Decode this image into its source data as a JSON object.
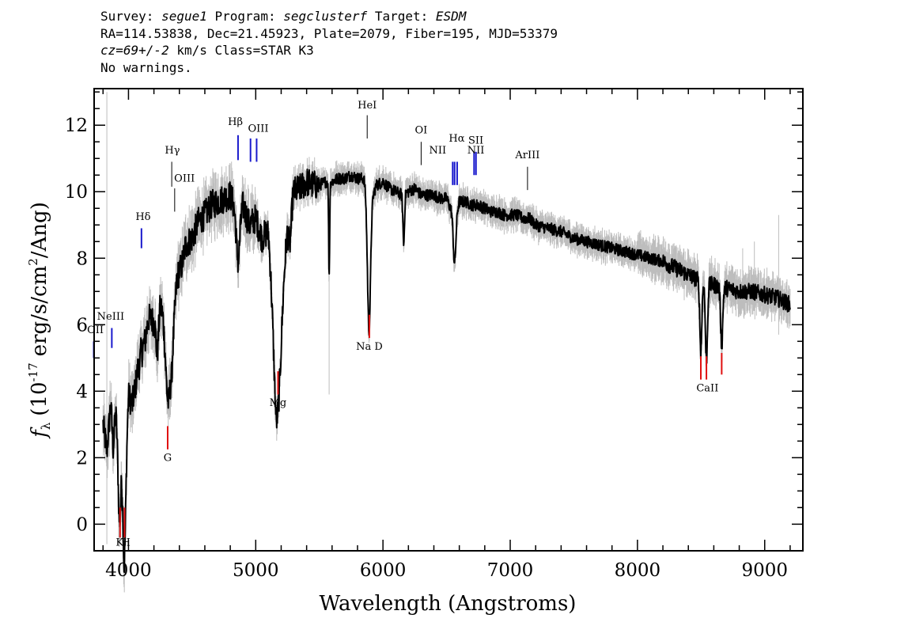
{
  "header": {
    "survey_label": "Survey:",
    "survey": "segue1",
    "program_label": "Program:",
    "program": "segclusterf",
    "target_label": "Target:",
    "target": "ESDM",
    "line2": "RA=114.53838, Dec=21.45923, Plate=2079, Fiber=195, MJD=53379",
    "cz": "cz=69+/-2",
    "cz_unit": "km/s Class=STAR K3",
    "warnings": "No warnings."
  },
  "chart_data": {
    "type": "line",
    "xlabel": "Wavelength (Angstroms)",
    "ylabel_prefix": "f",
    "ylabel_sub": "λ",
    "ylabel_main": "(10",
    "ylabel_exp": "-17",
    "ylabel_units": "erg/s/cm",
    "ylabel_exp2": "2",
    "ylabel_end": "/Ang)",
    "xlim": [
      3730,
      9300
    ],
    "ylim": [
      -0.8,
      13.1
    ],
    "x_ticks": [
      4000,
      5000,
      6000,
      7000,
      8000,
      9000
    ],
    "x_tick_labels": [
      "4000",
      "5000",
      "6000",
      "7000",
      "8000",
      "9000"
    ],
    "y_ticks": [
      0,
      2,
      4,
      6,
      8,
      10,
      12
    ],
    "y_tick_labels": [
      "0",
      "2",
      "4",
      "6",
      "8",
      "10",
      "12"
    ],
    "series_color": "#000000",
    "error_color": "#bdbdbd",
    "emission_color": "#1a1acd",
    "absorption_color": "#e01010",
    "other_color": "#000000",
    "continuum": [
      [
        3800,
        3.0
      ],
      [
        3830,
        2.2
      ],
      [
        3860,
        3.6
      ],
      [
        3880,
        2.3
      ],
      [
        3900,
        3.4
      ],
      [
        3925,
        2.0
      ],
      [
        3945,
        3.2
      ],
      [
        3965,
        0.9
      ],
      [
        3985,
        2.8
      ],
      [
        4000,
        3.9
      ],
      [
        4030,
        3.6
      ],
      [
        4060,
        4.3
      ],
      [
        4080,
        5.1
      ],
      [
        4100,
        6.6
      ],
      [
        4130,
        5.6
      ],
      [
        4160,
        6.2
      ],
      [
        4200,
        6.1
      ],
      [
        4250,
        6.6
      ],
      [
        4300,
        6.2
      ],
      [
        4340,
        4.9
      ],
      [
        4380,
        7.4
      ],
      [
        4420,
        7.8
      ],
      [
        4450,
        8.4
      ],
      [
        4500,
        8.6
      ],
      [
        4550,
        9.1
      ],
      [
        4600,
        9.3
      ],
      [
        4650,
        9.6
      ],
      [
        4700,
        9.7
      ],
      [
        4750,
        9.8
      ],
      [
        4800,
        9.9
      ],
      [
        4860,
        9.3
      ],
      [
        4900,
        9.6
      ],
      [
        4950,
        9.0
      ],
      [
        5000,
        9.2
      ],
      [
        5050,
        8.6
      ],
      [
        5100,
        8.9
      ],
      [
        5160,
        6.3
      ],
      [
        5200,
        7.6
      ],
      [
        5270,
        9.5
      ],
      [
        5300,
        10.0
      ],
      [
        5350,
        10.1
      ],
      [
        5400,
        10.3
      ],
      [
        5450,
        10.2
      ],
      [
        5500,
        10.2
      ],
      [
        5550,
        10.3
      ],
      [
        5600,
        10.3
      ],
      [
        5650,
        10.4
      ],
      [
        5700,
        10.4
      ],
      [
        5750,
        10.5
      ],
      [
        5800,
        10.4
      ],
      [
        5850,
        10.4
      ],
      [
        5890,
        9.6
      ],
      [
        5950,
        10.2
      ],
      [
        6000,
        10.3
      ],
      [
        6050,
        10.1
      ],
      [
        6100,
        10.0
      ],
      [
        6150,
        9.9
      ],
      [
        6200,
        10.0
      ],
      [
        6250,
        10.1
      ],
      [
        6300,
        9.9
      ],
      [
        6350,
        9.9
      ],
      [
        6400,
        9.9
      ],
      [
        6450,
        9.8
      ],
      [
        6500,
        9.8
      ],
      [
        6563,
        9.2
      ],
      [
        6600,
        9.7
      ],
      [
        6650,
        9.7
      ],
      [
        6700,
        9.6
      ],
      [
        6750,
        9.6
      ],
      [
        6800,
        9.5
      ],
      [
        6850,
        9.4
      ],
      [
        6900,
        9.4
      ],
      [
        6950,
        9.3
      ],
      [
        7000,
        9.3
      ],
      [
        7050,
        9.3
      ],
      [
        7100,
        9.2
      ],
      [
        7150,
        9.2
      ],
      [
        7200,
        9.0
      ],
      [
        7300,
        8.9
      ],
      [
        7400,
        8.8
      ],
      [
        7500,
        8.6
      ],
      [
        7600,
        8.5
      ],
      [
        7700,
        8.4
      ],
      [
        7800,
        8.3
      ],
      [
        7900,
        8.2
      ],
      [
        8000,
        8.1
      ],
      [
        8100,
        8.0
      ],
      [
        8200,
        7.9
      ],
      [
        8300,
        7.7
      ],
      [
        8400,
        7.5
      ],
      [
        8450,
        7.4
      ],
      [
        8500,
        7.3
      ],
      [
        8540,
        7.2
      ],
      [
        8600,
        7.2
      ],
      [
        8662,
        7.1
      ],
      [
        8700,
        7.1
      ],
      [
        8800,
        7.0
      ],
      [
        8900,
        7.0
      ],
      [
        9000,
        6.9
      ],
      [
        9100,
        6.8
      ],
      [
        9200,
        6.6
      ]
    ],
    "dips": [
      [
        3934,
        2.3,
        12
      ],
      [
        3969,
        2.3,
        12
      ],
      [
        4101,
        1.3,
        14
      ],
      [
        4226,
        1.2,
        10
      ],
      [
        4308,
        2.2,
        18
      ],
      [
        4861,
        1.4,
        14
      ],
      [
        5172,
        3.4,
        30
      ],
      [
        5270,
        1.0,
        10
      ],
      [
        5577,
        2.8,
        4
      ],
      [
        5890,
        3.8,
        12
      ],
      [
        6163,
        1.5,
        6
      ],
      [
        6563,
        1.4,
        10
      ],
      [
        8498,
        2.1,
        8
      ],
      [
        8542,
        2.3,
        8
      ],
      [
        8662,
        1.7,
        8
      ]
    ],
    "lines": [
      {
        "label": "OII",
        "x": 3727,
        "kind": "emission",
        "y0": 5.0,
        "y1": 5.5,
        "lx": 3740,
        "ly": 5.75
      },
      {
        "label": "NeIII",
        "x": 3869,
        "kind": "emission",
        "y0": 5.3,
        "y1": 5.9,
        "lx": 3860,
        "ly": 6.15
      },
      {
        "label": "Hδ",
        "x": 4102,
        "kind": "emission",
        "y0": 8.3,
        "y1": 8.9,
        "lx": 4115,
        "ly": 9.15
      },
      {
        "label": "Hγ",
        "x": 4340,
        "kind": "other",
        "y0": 10.15,
        "y1": 10.9,
        "lx": 4345,
        "ly": 11.15
      },
      {
        "label": "OIII",
        "x": 4363,
        "kind": "other",
        "y0": 9.4,
        "y1": 10.1,
        "lx": 4440,
        "ly": 10.3
      },
      {
        "label": "Hβ",
        "x": 4861,
        "kind": "emission",
        "y0": 10.95,
        "y1": 11.7,
        "lx": 4840,
        "ly": 12.0
      },
      {
        "label": "OIII",
        "x": 4959,
        "kind": "emission",
        "y0": 10.9,
        "y1": 11.6,
        "lx": 5020,
        "ly": 11.8
      },
      {
        "label": "OIII",
        "x": 5007,
        "kind": "emission",
        "y0": 10.9,
        "y1": 11.6,
        "lx": null,
        "ly": null
      },
      {
        "label": "HeI",
        "x": 5876,
        "kind": "other",
        "y0": 11.6,
        "y1": 12.3,
        "lx": 5876,
        "ly": 12.5
      },
      {
        "label": "OI",
        "x": 6300,
        "kind": "other",
        "y0": 10.8,
        "y1": 11.5,
        "lx": 6300,
        "ly": 11.75
      },
      {
        "label": "NII",
        "x": 6548,
        "kind": "emission",
        "y0": 10.2,
        "y1": 10.9,
        "lx": 6430,
        "ly": 11.15
      },
      {
        "label": "Hα",
        "x": 6563,
        "kind": "emission",
        "y0": 10.2,
        "y1": 10.9,
        "lx": 6580,
        "ly": 11.5
      },
      {
        "label": "NII",
        "x": 6583,
        "kind": "emission",
        "y0": 10.2,
        "y1": 10.9,
        "lx": null,
        "ly": null
      },
      {
        "label": "SII",
        "x": 6716,
        "kind": "emission",
        "y0": 10.5,
        "y1": 11.2,
        "lx": 6730,
        "ly": 11.45
      },
      {
        "label": "NII",
        "x": 6731,
        "kind": "emission",
        "y0": 10.5,
        "y1": 11.2,
        "lx": 6730,
        "ly": 11.15
      },
      {
        "label": "ArIII",
        "x": 7136,
        "kind": "other",
        "y0": 10.05,
        "y1": 10.75,
        "lx": 7136,
        "ly": 11.0
      },
      {
        "label": "K",
        "x": 3934,
        "kind": "absorption",
        "y0": -0.4,
        "y1": 0.5,
        "lx": 3930,
        "ly": -0.65
      },
      {
        "label": "H",
        "x": 3969,
        "kind": "absorption",
        "y0": -0.4,
        "y1": 0.5,
        "lx": 3980,
        "ly": -0.65
      },
      {
        "label": "G",
        "x": 4308,
        "kind": "absorption",
        "y0": 2.25,
        "y1": 2.95,
        "lx": 4308,
        "ly": 1.9
      },
      {
        "label": "Mg",
        "x": 5175,
        "kind": "absorption",
        "y0": 3.9,
        "y1": 4.6,
        "lx": 5175,
        "ly": 3.55
      },
      {
        "label": "Na D",
        "x": 5893,
        "kind": "absorption",
        "y0": 5.6,
        "y1": 6.3,
        "lx": 5893,
        "ly": 5.25
      },
      {
        "label": "CaII",
        "x": 8498,
        "kind": "absorption",
        "y0": 4.35,
        "y1": 5.05,
        "lx": 8550,
        "ly": 4.0
      },
      {
        "label": "CaII",
        "x": 8542,
        "kind": "absorption",
        "y0": 4.35,
        "y1": 5.05,
        "lx": null,
        "ly": null
      },
      {
        "label": "CaII",
        "x": 8662,
        "kind": "absorption",
        "y0": 4.5,
        "y1": 5.15,
        "lx": null,
        "ly": null
      }
    ]
  }
}
